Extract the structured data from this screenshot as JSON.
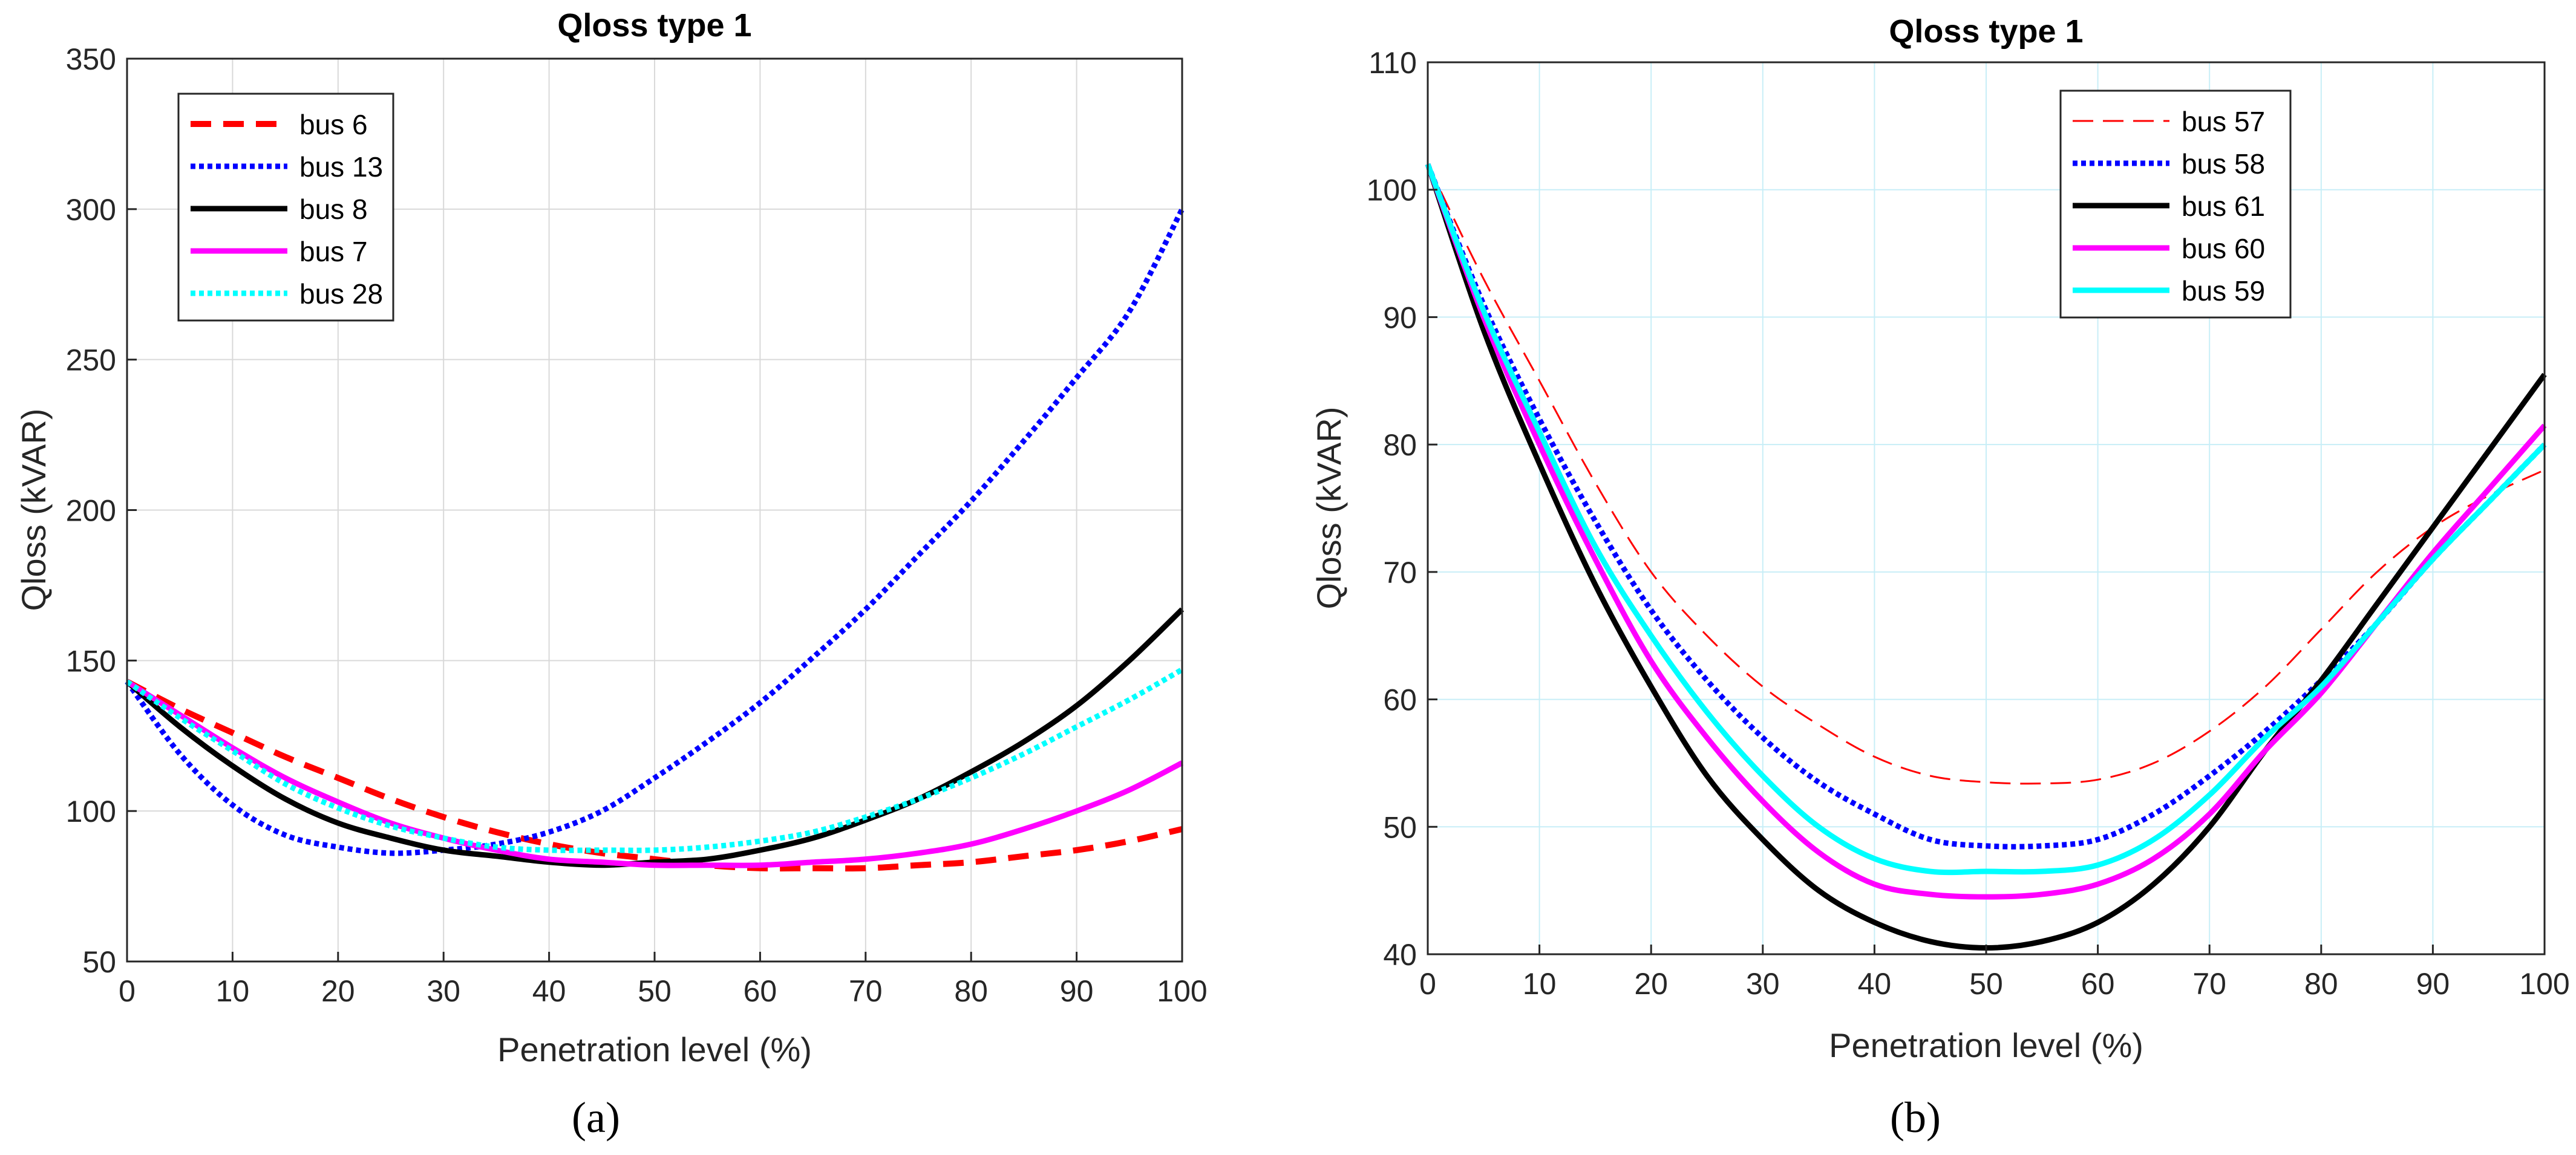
{
  "chart_data": [
    {
      "type": "line",
      "panel": "(a)",
      "title": "Qloss type 1",
      "xlabel": "Penetration level (%)",
      "ylabel": "Qloss (kVAR)",
      "xlim": [
        0,
        100
      ],
      "ylim": [
        50,
        350
      ],
      "xticks": [
        0,
        10,
        20,
        30,
        40,
        50,
        60,
        70,
        80,
        90,
        100
      ],
      "yticks": [
        50,
        100,
        150,
        200,
        250,
        300,
        350
      ],
      "grid": true,
      "legend_position": "top-left",
      "x": [
        0,
        5,
        10,
        15,
        20,
        25,
        30,
        35,
        40,
        45,
        50,
        55,
        60,
        65,
        70,
        75,
        80,
        85,
        90,
        95,
        100
      ],
      "series": [
        {
          "name": "bus 6",
          "color": "#ff0000",
          "style": "dashed",
          "values": [
            143,
            134,
            126,
            118,
            111,
            104,
            98,
            93,
            89,
            86,
            84,
            82,
            81,
            81,
            81,
            82,
            83,
            85,
            87,
            90,
            94
          ]
        },
        {
          "name": "bus 13",
          "color": "#0000ff",
          "style": "dotted",
          "values": [
            143,
            119,
            102,
            92,
            88,
            86,
            87,
            89,
            93,
            100,
            111,
            123,
            136,
            151,
            167,
            185,
            203,
            223,
            244,
            266,
            300
          ]
        },
        {
          "name": "bus 8",
          "color": "#000000",
          "style": "solid",
          "values": [
            143,
            128,
            115,
            104,
            96,
            91,
            87,
            85,
            83,
            82,
            83,
            84,
            87,
            91,
            97,
            104,
            113,
            123,
            135,
            150,
            167
          ]
        },
        {
          "name": "bus 7",
          "color": "#ff00ff",
          "style": "solid",
          "values": [
            143,
            132,
            121,
            111,
            103,
            96,
            91,
            87,
            84,
            83,
            82,
            82,
            82,
            83,
            84,
            86,
            89,
            94,
            100,
            107,
            116
          ]
        },
        {
          "name": "bus 28",
          "color": "#00ffff",
          "style": "dotted",
          "values": [
            143,
            131,
            120,
            109,
            101,
            95,
            91,
            88,
            87,
            87,
            87,
            88,
            90,
            93,
            98,
            104,
            111,
            119,
            128,
            137,
            147
          ]
        }
      ]
    },
    {
      "type": "line",
      "panel": "(b)",
      "title": "Qloss type 1",
      "xlabel": "Penetration level (%)",
      "ylabel": "Qloss (kVAR)",
      "xlim": [
        0,
        100
      ],
      "ylim": [
        40,
        110
      ],
      "xticks": [
        0,
        10,
        20,
        30,
        40,
        50,
        60,
        70,
        80,
        90,
        100
      ],
      "yticks": [
        40,
        50,
        60,
        70,
        80,
        90,
        100,
        110
      ],
      "grid": true,
      "legend_position": "top-right",
      "x": [
        0,
        5,
        10,
        15,
        20,
        25,
        30,
        35,
        40,
        45,
        50,
        55,
        60,
        65,
        70,
        75,
        80,
        85,
        90,
        95,
        100
      ],
      "series": [
        {
          "name": "bus 57",
          "color": "#ff0000",
          "style": "thin-dashed",
          "values": [
            102,
            93,
            85,
            77,
            70,
            65,
            61,
            58,
            55.5,
            54,
            53.5,
            53.4,
            53.7,
            55,
            57.5,
            61,
            65.5,
            70,
            73.5,
            76,
            78
          ]
        },
        {
          "name": "bus 58",
          "color": "#0000ff",
          "style": "dotted",
          "values": [
            102,
            91,
            82,
            74,
            67,
            61.5,
            57,
            53.5,
            51,
            49,
            48.5,
            48.5,
            49,
            51,
            54,
            57.5,
            61.5,
            66,
            71,
            75.5,
            80
          ]
        },
        {
          "name": "bus 61",
          "color": "#000000",
          "style": "solid",
          "values": [
            102,
            89,
            78.5,
            69,
            61,
            54,
            49,
            45,
            42.5,
            41,
            40.5,
            41,
            42.5,
            45.5,
            50,
            56,
            61.5,
            67.5,
            73.5,
            79.5,
            85.5
          ]
        },
        {
          "name": "bus 60",
          "color": "#ff00ff",
          "style": "solid",
          "values": [
            102,
            90,
            80,
            71,
            63,
            57,
            52,
            48,
            45.5,
            44.7,
            44.5,
            44.7,
            45.5,
            47.5,
            51,
            56,
            60.5,
            66,
            71.5,
            76.5,
            81.5
          ]
        },
        {
          "name": "bus 59",
          "color": "#00ffff",
          "style": "solid",
          "values": [
            102,
            90.5,
            81,
            72,
            65,
            59,
            54,
            50,
            47.5,
            46.5,
            46.5,
            46.5,
            47,
            49,
            52.5,
            57,
            61,
            66,
            71,
            75.5,
            80
          ]
        }
      ]
    }
  ],
  "captions": [
    "(a)",
    "(b)"
  ]
}
